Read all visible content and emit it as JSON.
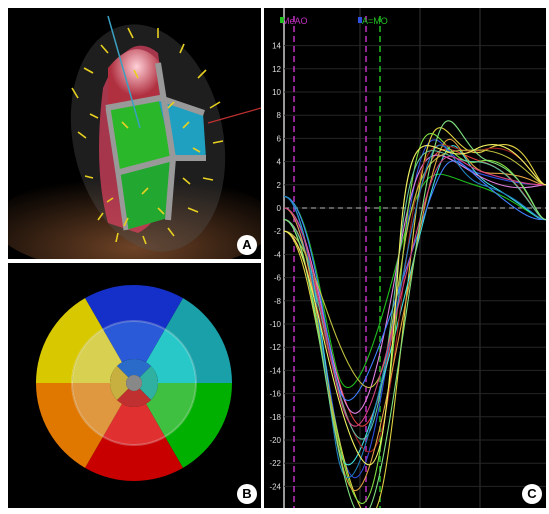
{
  "panels": {
    "a": {
      "letter": "A"
    },
    "b": {
      "letter": "B"
    },
    "c": {
      "letter": "C"
    }
  },
  "bullseye": {
    "colors": {
      "outer": [
        "#1530c8",
        "#1aa0a8",
        "#00b000",
        "#c80000",
        "#e07800",
        "#d8c800"
      ],
      "mid": [
        "#2a5ad8",
        "#28c8c8",
        "#40c040",
        "#e03030",
        "#e09840",
        "#d8d050"
      ],
      "inner": [
        "#2a6ac8",
        "#30b0a0",
        "#c03030",
        "#c8b040"
      ],
      "apex": "#888888"
    }
  },
  "chart_data": {
    "type": "line",
    "ylim": [
      -25,
      15
    ],
    "yticks": [
      14,
      12,
      10,
      8,
      6,
      4,
      2,
      0,
      -2,
      -4,
      -6,
      -8,
      -10,
      -12,
      -14,
      -16,
      -18,
      -20,
      -22,
      -24
    ],
    "markers": [
      {
        "label": "MeAO",
        "color": "#c030c0"
      },
      {
        "label": "A=MO",
        "color": "#20c020"
      }
    ],
    "series_colors": [
      "#20c020",
      "#3050e0",
      "#e04040",
      "#e0d040",
      "#40e0e0",
      "#e080e0",
      "#80e040",
      "#a02020",
      "#4080ff",
      "#e0a040",
      "#60c0a0",
      "#c0c040",
      "#2080c0",
      "#d04080",
      "#80e080",
      "#f0f060"
    ]
  }
}
